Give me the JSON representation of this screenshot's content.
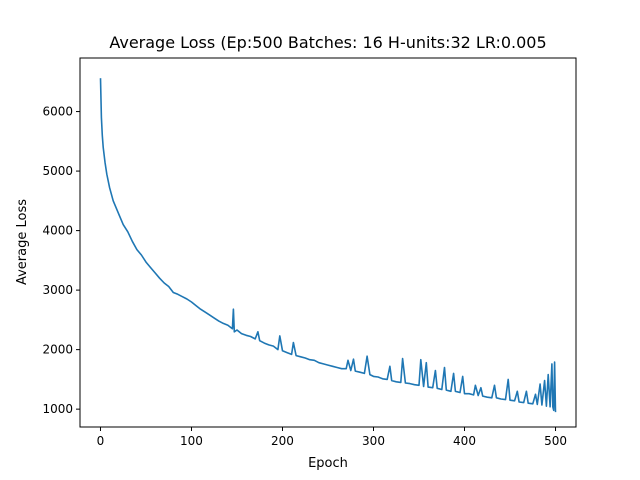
{
  "chart_data": {
    "type": "line",
    "title": "Average Loss (Ep:500 Batches: 16 H-units:32 LR:0.005",
    "xlabel": "Epoch",
    "ylabel": "Average Loss",
    "xlim": [
      -22.5,
      522.5
    ],
    "ylim": [
      700,
      6900
    ],
    "xticks": [
      0,
      100,
      200,
      300,
      400,
      500
    ],
    "yticks": [
      1000,
      2000,
      3000,
      4000,
      5000,
      6000
    ],
    "grid": false,
    "legend": "none",
    "series": [
      {
        "color": "#1f77b4",
        "x": [
          0,
          1,
          2,
          3,
          5,
          7,
          10,
          14,
          20,
          25,
          30,
          35,
          40,
          45,
          50,
          55,
          60,
          65,
          70,
          75,
          80,
          85,
          90,
          95,
          100,
          105,
          110,
          115,
          120,
          125,
          130,
          135,
          140,
          145,
          146,
          147,
          150,
          155,
          160,
          165,
          170,
          173,
          175,
          180,
          185,
          190,
          195,
          197,
          200,
          205,
          210,
          212,
          215,
          220,
          225,
          230,
          235,
          240,
          245,
          250,
          255,
          260,
          265,
          270,
          272,
          275,
          278,
          280,
          285,
          290,
          293,
          296,
          300,
          305,
          310,
          315,
          318,
          320,
          325,
          330,
          332,
          335,
          340,
          345,
          350,
          352,
          355,
          358,
          360,
          365,
          368,
          370,
          375,
          378,
          380,
          385,
          388,
          390,
          395,
          398,
          400,
          405,
          410,
          412,
          415,
          418,
          420,
          425,
          430,
          433,
          435,
          440,
          445,
          448,
          450,
          455,
          458,
          460,
          465,
          468,
          470,
          475,
          478,
          480,
          483,
          485,
          488,
          490,
          492,
          494,
          496,
          497,
          498,
          499,
          500
        ],
        "values": [
          6560,
          5900,
          5600,
          5400,
          5150,
          4950,
          4720,
          4500,
          4280,
          4100,
          3980,
          3820,
          3680,
          3590,
          3470,
          3380,
          3290,
          3200,
          3120,
          3060,
          2960,
          2930,
          2890,
          2850,
          2800,
          2740,
          2680,
          2630,
          2580,
          2530,
          2480,
          2440,
          2410,
          2350,
          2680,
          2300,
          2330,
          2270,
          2240,
          2220,
          2180,
          2300,
          2150,
          2110,
          2080,
          2060,
          2000,
          2230,
          1980,
          1950,
          1920,
          2120,
          1900,
          1880,
          1860,
          1830,
          1820,
          1780,
          1760,
          1740,
          1720,
          1700,
          1680,
          1680,
          1820,
          1650,
          1840,
          1640,
          1620,
          1600,
          1890,
          1580,
          1550,
          1540,
          1510,
          1500,
          1720,
          1480,
          1460,
          1450,
          1850,
          1440,
          1430,
          1410,
          1400,
          1830,
          1380,
          1780,
          1370,
          1360,
          1650,
          1350,
          1330,
          1700,
          1320,
          1300,
          1600,
          1300,
          1280,
          1550,
          1260,
          1260,
          1240,
          1400,
          1230,
          1360,
          1220,
          1200,
          1190,
          1400,
          1190,
          1170,
          1160,
          1500,
          1150,
          1140,
          1300,
          1120,
          1110,
          1300,
          1100,
          1090,
          1250,
          1080,
          1420,
          1070,
          1480,
          1050,
          1580,
          1040,
          1760,
          1040,
          980,
          1790,
          950
        ]
      }
    ]
  }
}
